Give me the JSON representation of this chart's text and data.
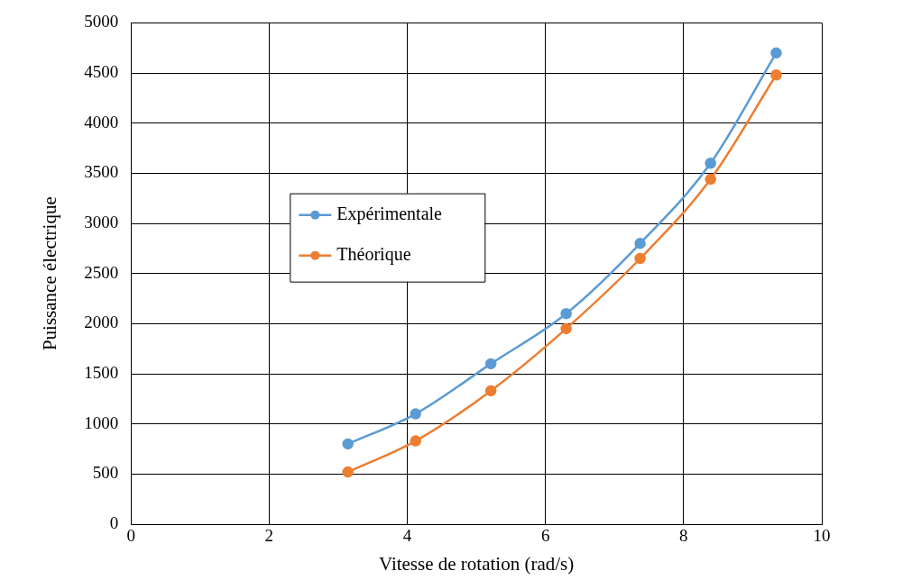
{
  "chart_data": {
    "type": "line",
    "xlabel": "Vitesse de rotation (rad/s)",
    "ylabel": "Puissance électrique",
    "xlim": [
      0,
      10
    ],
    "xticks": [
      0,
      2,
      4,
      6,
      8,
      10
    ],
    "ylim": [
      0,
      5000
    ],
    "yticks": [
      0,
      500,
      1000,
      1500,
      2000,
      2500,
      3000,
      3500,
      4000,
      4500,
      5000
    ],
    "grid": true,
    "legend": "left",
    "marker": "circle",
    "line_style": "solid",
    "series": [
      {
        "name": "Expérimentale",
        "color": "#5b9bd5",
        "x": [
          3.14,
          4.12,
          5.21,
          6.3,
          7.37,
          8.39,
          9.34
        ],
        "values": [
          800,
          1100,
          1600,
          2100,
          2800,
          3600,
          4700
        ]
      },
      {
        "name": "Théorique",
        "color": "#ed7d31",
        "x": [
          3.14,
          4.12,
          5.21,
          6.3,
          7.37,
          8.39,
          9.34
        ],
        "values": [
          520,
          830,
          1330,
          1950,
          2650,
          3440,
          4480
        ]
      }
    ]
  }
}
